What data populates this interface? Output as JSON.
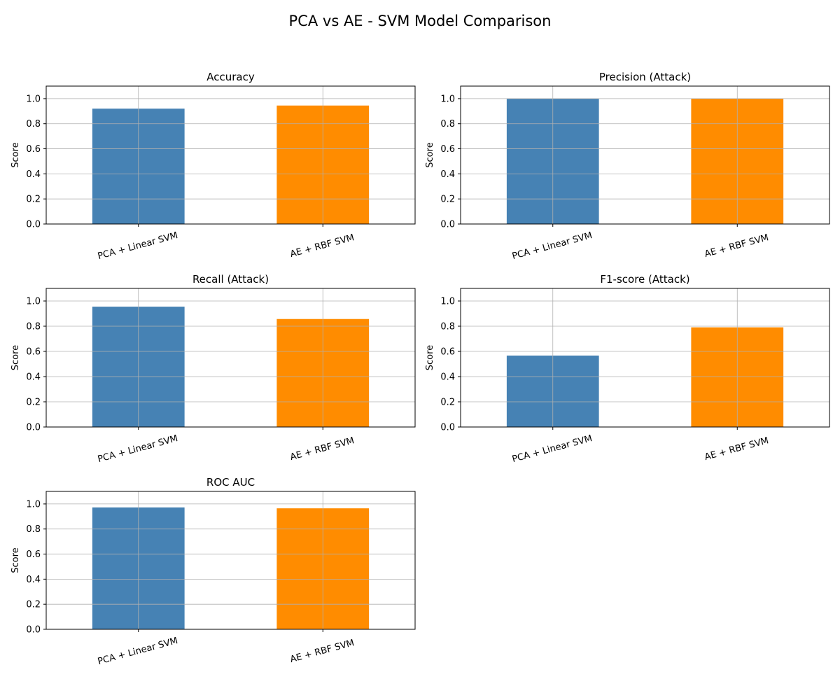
{
  "figure": {
    "title": "PCA vs AE - SVM Model Comparison"
  },
  "chart_data": [
    {
      "type": "bar",
      "title": "Accuracy",
      "ylabel": "Score",
      "xlabel": "",
      "categories": [
        "PCA + Linear SVM",
        "AE + RBF SVM"
      ],
      "values": [
        0.92,
        0.945
      ],
      "colors": [
        "#4682b4",
        "#ff8c00"
      ],
      "ylim": [
        0,
        1.1
      ],
      "yticks": [
        "0.0",
        "0.2",
        "0.4",
        "0.6",
        "0.8",
        "1.0"
      ],
      "grid": true
    },
    {
      "type": "bar",
      "title": "Precision (Attack)",
      "ylabel": "Score",
      "xlabel": "",
      "categories": [
        "PCA + Linear SVM",
        "AE + RBF SVM"
      ],
      "values": [
        1.0,
        1.0
      ],
      "colors": [
        "#4682b4",
        "#ff8c00"
      ],
      "ylim": [
        0,
        1.1
      ],
      "yticks": [
        "0.0",
        "0.2",
        "0.4",
        "0.6",
        "0.8",
        "1.0"
      ],
      "grid": true
    },
    {
      "type": "bar",
      "title": "Recall (Attack)",
      "ylabel": "Score",
      "xlabel": "",
      "categories": [
        "PCA + Linear SVM",
        "AE + RBF SVM"
      ],
      "values": [
        0.955,
        0.857
      ],
      "colors": [
        "#4682b4",
        "#ff8c00"
      ],
      "ylim": [
        0,
        1.1
      ],
      "yticks": [
        "0.0",
        "0.2",
        "0.4",
        "0.6",
        "0.8",
        "1.0"
      ],
      "grid": true
    },
    {
      "type": "bar",
      "title": "F1-score (Attack)",
      "ylabel": "Score",
      "xlabel": "",
      "categories": [
        "PCA + Linear SVM",
        "AE + RBF SVM"
      ],
      "values": [
        0.567,
        0.791
      ],
      "colors": [
        "#4682b4",
        "#ff8c00"
      ],
      "ylim": [
        0,
        1.1
      ],
      "yticks": [
        "0.0",
        "0.2",
        "0.4",
        "0.6",
        "0.8",
        "1.0"
      ],
      "grid": true
    },
    {
      "type": "bar",
      "title": "ROC AUC",
      "ylabel": "Score",
      "xlabel": "",
      "categories": [
        "PCA + Linear SVM",
        "AE + RBF SVM"
      ],
      "values": [
        0.972,
        0.965
      ],
      "colors": [
        "#4682b4",
        "#ff8c00"
      ],
      "ylim": [
        0,
        1.1
      ],
      "yticks": [
        "0.0",
        "0.2",
        "0.4",
        "0.6",
        "0.8",
        "1.0"
      ],
      "grid": true
    }
  ]
}
